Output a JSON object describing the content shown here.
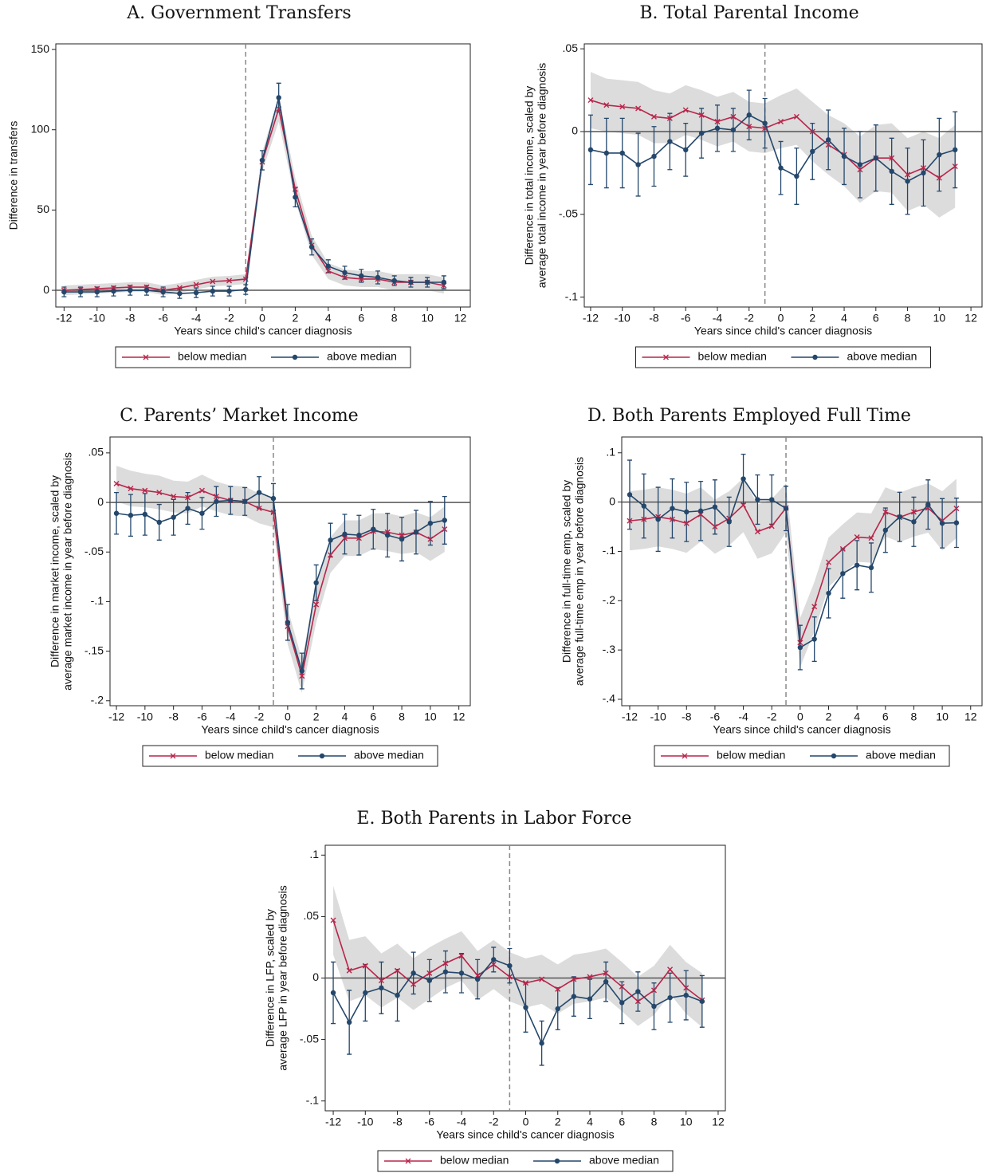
{
  "chart_data": [
    {
      "type": "line",
      "title": "A. Government Transfers",
      "ylabel": [
        "Difference in transfers"
      ],
      "xlabel": "Years since child's cancer diagnosis",
      "x": [
        -12,
        -11,
        -10,
        -9,
        -8,
        -7,
        -6,
        -5,
        -4,
        -3,
        -2,
        -1,
        0,
        1,
        2,
        3,
        4,
        5,
        6,
        7,
        8,
        9,
        10,
        11
      ],
      "xlim": [
        -12.5,
        12.6
      ],
      "xticks": [
        -12,
        -10,
        -8,
        -6,
        -4,
        -2,
        0,
        2,
        4,
        6,
        8,
        10,
        12
      ],
      "ylim": [
        -10.4,
        153.5
      ],
      "yticks": [
        0,
        50,
        100,
        150
      ],
      "vline": -1,
      "hline": 0,
      "series": [
        {
          "name": "below median",
          "color": "#b8254a",
          "values": [
            0,
            0.5,
            1,
            1.5,
            2,
            2,
            0,
            1.5,
            3.5,
            5.5,
            6,
            7,
            80,
            113,
            63,
            28,
            12,
            8,
            7,
            7,
            5,
            5,
            5,
            3
          ],
          "errors": [
            3,
            3,
            3,
            3,
            3,
            3,
            3,
            3,
            3,
            3,
            3,
            3,
            6,
            8,
            7,
            6,
            5,
            5,
            5,
            5,
            5,
            5,
            5,
            5
          ]
        },
        {
          "name": "above median",
          "color": "#24476b",
          "values": [
            -1,
            -1,
            -1,
            -0.5,
            0,
            0,
            -1,
            -2,
            -1.5,
            -0.5,
            -0.5,
            0.5,
            81,
            120,
            58,
            27,
            15,
            11,
            9,
            8,
            6,
            5,
            5,
            5
          ],
          "errors": [
            3,
            3,
            3,
            3,
            3,
            3,
            3,
            3,
            3,
            3,
            3,
            3,
            6,
            9,
            6,
            5,
            4,
            4,
            4,
            4,
            3,
            3,
            3,
            4
          ]
        }
      ]
    },
    {
      "type": "line",
      "title": "B. Total Parental Income",
      "ylabel": [
        "Difference in total income, scaled by",
        "average total income in year before diagnosis"
      ],
      "xlabel": "Years since child's cancer diagnosis",
      "x": [
        -12,
        -11,
        -10,
        -9,
        -8,
        -7,
        -6,
        -5,
        -4,
        -3,
        -2,
        -1,
        0,
        1,
        2,
        3,
        4,
        5,
        6,
        7,
        8,
        9,
        10,
        11
      ],
      "xlim": [
        -12.4,
        12.7
      ],
      "xticks": [
        -12,
        -10,
        -8,
        -6,
        -4,
        -2,
        0,
        2,
        4,
        6,
        8,
        10,
        12
      ],
      "ylim": [
        -0.106,
        0.053
      ],
      "yticks": [
        {
          "value": 0.05,
          "label": ".05"
        },
        0,
        {
          "value": -0.05,
          "label": "-.05"
        },
        {
          "value": -0.1,
          "label": "-.1"
        }
      ],
      "vline": -1,
      "hline": 0,
      "series": [
        {
          "name": "below median",
          "color": "#b8254a",
          "values": [
            0.019,
            0.016,
            0.015,
            0.014,
            0.009,
            0.008,
            0.013,
            0.01,
            0.006,
            0.009,
            0.003,
            0.002,
            0.006,
            0.009,
            0.0,
            -0.008,
            -0.014,
            -0.023,
            -0.016,
            -0.016,
            -0.026,
            -0.022,
            -0.028,
            -0.021
          ],
          "errors": [
            0.017,
            0.016,
            0.016,
            0.016,
            0.016,
            0.015,
            0.015,
            0.015,
            0.015,
            0.015,
            0.015,
            0.015,
            0.016,
            0.017,
            0.018,
            0.018,
            0.019,
            0.02,
            0.02,
            0.021,
            0.022,
            0.022,
            0.024,
            0.025
          ]
        },
        {
          "name": "above median",
          "color": "#24476b",
          "values": [
            -0.011,
            -0.013,
            -0.013,
            -0.02,
            -0.015,
            -0.006,
            -0.011,
            -0.001,
            0.002,
            0.001,
            0.01,
            0.005,
            -0.022,
            -0.027,
            -0.012,
            -0.005,
            -0.015,
            -0.02,
            -0.016,
            -0.024,
            -0.03,
            -0.025,
            -0.014,
            -0.011
          ],
          "errors": [
            0.021,
            0.021,
            0.021,
            0.019,
            0.018,
            0.017,
            0.016,
            0.015,
            0.014,
            0.013,
            0.015,
            0.015,
            0.016,
            0.017,
            0.017,
            0.018,
            0.017,
            0.02,
            0.02,
            0.02,
            0.02,
            0.02,
            0.022,
            0.023
          ]
        }
      ]
    },
    {
      "type": "line",
      "title": "C. Parents’ Market Income",
      "ylabel": [
        "Difference in market income, scaled by",
        "average market income in year before diagnosis"
      ],
      "xlabel": "Years since child's cancer diagnosis",
      "x": [
        -12,
        -11,
        -10,
        -9,
        -8,
        -7,
        -6,
        -5,
        -4,
        -3,
        -2,
        -1,
        0,
        1,
        2,
        3,
        4,
        5,
        6,
        7,
        8,
        9,
        10,
        11
      ],
      "xlim": [
        -12.45,
        12.8
      ],
      "xticks": [
        -12,
        -10,
        -8,
        -6,
        -4,
        -2,
        0,
        2,
        4,
        6,
        8,
        10,
        12
      ],
      "ylim": [
        -0.205,
        0.066
      ],
      "yticks": [
        {
          "value": 0.05,
          "label": ".05"
        },
        0,
        {
          "value": -0.05,
          "label": "-.05"
        },
        {
          "value": -0.1,
          "label": "-.1"
        },
        {
          "value": -0.15,
          "label": "-.15"
        },
        {
          "value": -0.2,
          "label": "-.2"
        }
      ],
      "vline": -1,
      "hline": 0,
      "series": [
        {
          "name": "below median",
          "color": "#b8254a",
          "values": [
            0.019,
            0.014,
            0.012,
            0.01,
            0.006,
            0.005,
            0.012,
            0.006,
            0.002,
            0.001,
            -0.006,
            -0.01,
            -0.125,
            -0.175,
            -0.103,
            -0.053,
            -0.036,
            -0.036,
            -0.029,
            -0.03,
            -0.033,
            -0.03,
            -0.037,
            -0.027
          ],
          "errors": [
            0.018,
            0.018,
            0.017,
            0.017,
            0.016,
            0.016,
            0.016,
            0.015,
            0.015,
            0.015,
            0.015,
            0.015,
            0.018,
            0.017,
            0.018,
            0.018,
            0.018,
            0.018,
            0.018,
            0.019,
            0.019,
            0.02,
            0.022,
            0.023
          ]
        },
        {
          "name": "above median",
          "color": "#24476b",
          "values": [
            -0.011,
            -0.013,
            -0.012,
            -0.02,
            -0.015,
            -0.006,
            -0.011,
            0.001,
            0.002,
            0.001,
            0.01,
            0.004,
            -0.121,
            -0.17,
            -0.081,
            -0.038,
            -0.032,
            -0.033,
            -0.027,
            -0.033,
            -0.037,
            -0.03,
            -0.021,
            -0.018
          ],
          "errors": [
            0.021,
            0.021,
            0.021,
            0.018,
            0.018,
            0.016,
            0.016,
            0.015,
            0.014,
            0.014,
            0.016,
            0.015,
            0.018,
            0.018,
            0.018,
            0.017,
            0.02,
            0.02,
            0.02,
            0.022,
            0.022,
            0.022,
            0.022,
            0.024
          ]
        }
      ]
    },
    {
      "type": "line",
      "title": "D. Both Parents Employed Full Time",
      "ylabel": [
        "Difference in full-time emp, scaled by",
        "average full-time emp in year before diagnosis"
      ],
      "xlabel": "Years since child's cancer diagnosis",
      "x": [
        -12,
        -11,
        -10,
        -9,
        -8,
        -7,
        -6,
        -5,
        -4,
        -3,
        -2,
        -1,
        0,
        1,
        2,
        3,
        4,
        5,
        6,
        7,
        8,
        9,
        10,
        11
      ],
      "xlim": [
        -12.56,
        12.8
      ],
      "xticks": [
        -12,
        -10,
        -8,
        -6,
        -4,
        -2,
        0,
        2,
        4,
        6,
        8,
        10,
        12
      ],
      "ylim": [
        -0.413,
        0.132
      ],
      "yticks": [
        {
          "value": 0.1,
          "label": ".1"
        },
        0,
        {
          "value": -0.1,
          "label": "-.1"
        },
        {
          "value": -0.2,
          "label": "-.2"
        },
        {
          "value": -0.3,
          "label": "-.3"
        },
        {
          "value": -0.4,
          "label": "-.4"
        }
      ],
      "vline": -1,
      "hline": 0,
      "series": [
        {
          "name": "below median",
          "color": "#b8254a",
          "values": [
            -0.038,
            -0.035,
            -0.03,
            -0.035,
            -0.043,
            -0.025,
            -0.05,
            -0.033,
            -0.006,
            -0.06,
            -0.049,
            -0.012,
            -0.285,
            -0.212,
            -0.122,
            -0.095,
            -0.071,
            -0.073,
            -0.02,
            -0.031,
            -0.02,
            -0.012,
            -0.038,
            -0.013
          ],
          "errors": [
            0.06,
            0.06,
            0.06,
            0.06,
            0.06,
            0.055,
            0.055,
            0.055,
            0.055,
            0.055,
            0.055,
            0.05,
            0.05,
            0.05,
            0.05,
            0.05,
            0.05,
            0.05,
            0.05,
            0.05,
            0.05,
            0.05,
            0.06,
            0.06
          ]
        },
        {
          "name": "above median",
          "color": "#24476b",
          "values": [
            0.015,
            -0.008,
            -0.035,
            -0.013,
            -0.02,
            -0.018,
            -0.01,
            -0.04,
            0.047,
            0.005,
            0.005,
            -0.013,
            -0.295,
            -0.278,
            -0.185,
            -0.145,
            -0.128,
            -0.133,
            -0.057,
            -0.03,
            -0.04,
            -0.005,
            -0.043,
            -0.042
          ],
          "errors": [
            0.07,
            0.065,
            0.065,
            0.06,
            0.06,
            0.06,
            0.055,
            0.05,
            0.05,
            0.05,
            0.05,
            0.045,
            0.045,
            0.045,
            0.05,
            0.05,
            0.05,
            0.05,
            0.045,
            0.05,
            0.05,
            0.05,
            0.05,
            0.05
          ]
        }
      ]
    },
    {
      "type": "line",
      "title": "E. Both Parents in Labor Force",
      "ylabel": [
        "Difference in LFP, scaled by",
        "average LFP in year before diagnosis"
      ],
      "xlabel": "Years since child's cancer diagnosis",
      "x": [
        -12,
        -11,
        -10,
        -9,
        -8,
        -7,
        -6,
        -5,
        -4,
        -3,
        -2,
        -1,
        0,
        1,
        2,
        3,
        4,
        5,
        6,
        7,
        8,
        9,
        10,
        11
      ],
      "xlim": [
        -12.5,
        12.45
      ],
      "xticks": [
        -12,
        -10,
        -8,
        -6,
        -4,
        -2,
        0,
        2,
        4,
        6,
        8,
        10,
        12
      ],
      "ylim": [
        -0.108,
        0.108
      ],
      "yticks": [
        {
          "value": 0.1,
          "label": ".1"
        },
        {
          "value": 0.05,
          "label": ".05"
        },
        0,
        {
          "value": -0.05,
          "label": "-.05"
        },
        {
          "value": -0.1,
          "label": "-.1"
        }
      ],
      "vline": -1,
      "hline": 0,
      "series": [
        {
          "name": "below median",
          "color": "#b8254a",
          "values": [
            0.047,
            0.006,
            0.01,
            -0.002,
            0.006,
            -0.005,
            0.004,
            0.012,
            0.018,
            0.002,
            0.011,
            0.001,
            -0.004,
            -0.001,
            -0.009,
            -0.001,
            0.001,
            0.004,
            -0.007,
            -0.019,
            -0.01,
            0.007,
            -0.008,
            -0.018
          ],
          "errors": [
            0.028,
            0.025,
            0.024,
            0.022,
            0.022,
            0.021,
            0.021,
            0.02,
            0.02,
            0.02,
            0.02,
            0.02,
            0.02,
            0.02,
            0.02,
            0.02,
            0.02,
            0.02,
            0.02,
            0.02,
            0.02,
            0.02,
            0.021,
            0.022
          ]
        },
        {
          "name": "above median",
          "color": "#24476b",
          "values": [
            -0.012,
            -0.036,
            -0.012,
            -0.008,
            -0.014,
            0.004,
            -0.002,
            0.005,
            0.004,
            -0.001,
            0.015,
            0.01,
            -0.024,
            -0.053,
            -0.025,
            -0.015,
            -0.017,
            -0.003,
            -0.02,
            -0.011,
            -0.023,
            -0.016,
            -0.014,
            -0.019
          ],
          "errors": [
            0.025,
            0.026,
            0.023,
            0.021,
            0.021,
            0.017,
            0.017,
            0.017,
            0.016,
            0.016,
            0.01,
            0.014,
            0.02,
            0.018,
            0.017,
            0.016,
            0.016,
            0.016,
            0.017,
            0.016,
            0.019,
            0.02,
            0.02,
            0.021
          ]
        }
      ]
    }
  ]
}
